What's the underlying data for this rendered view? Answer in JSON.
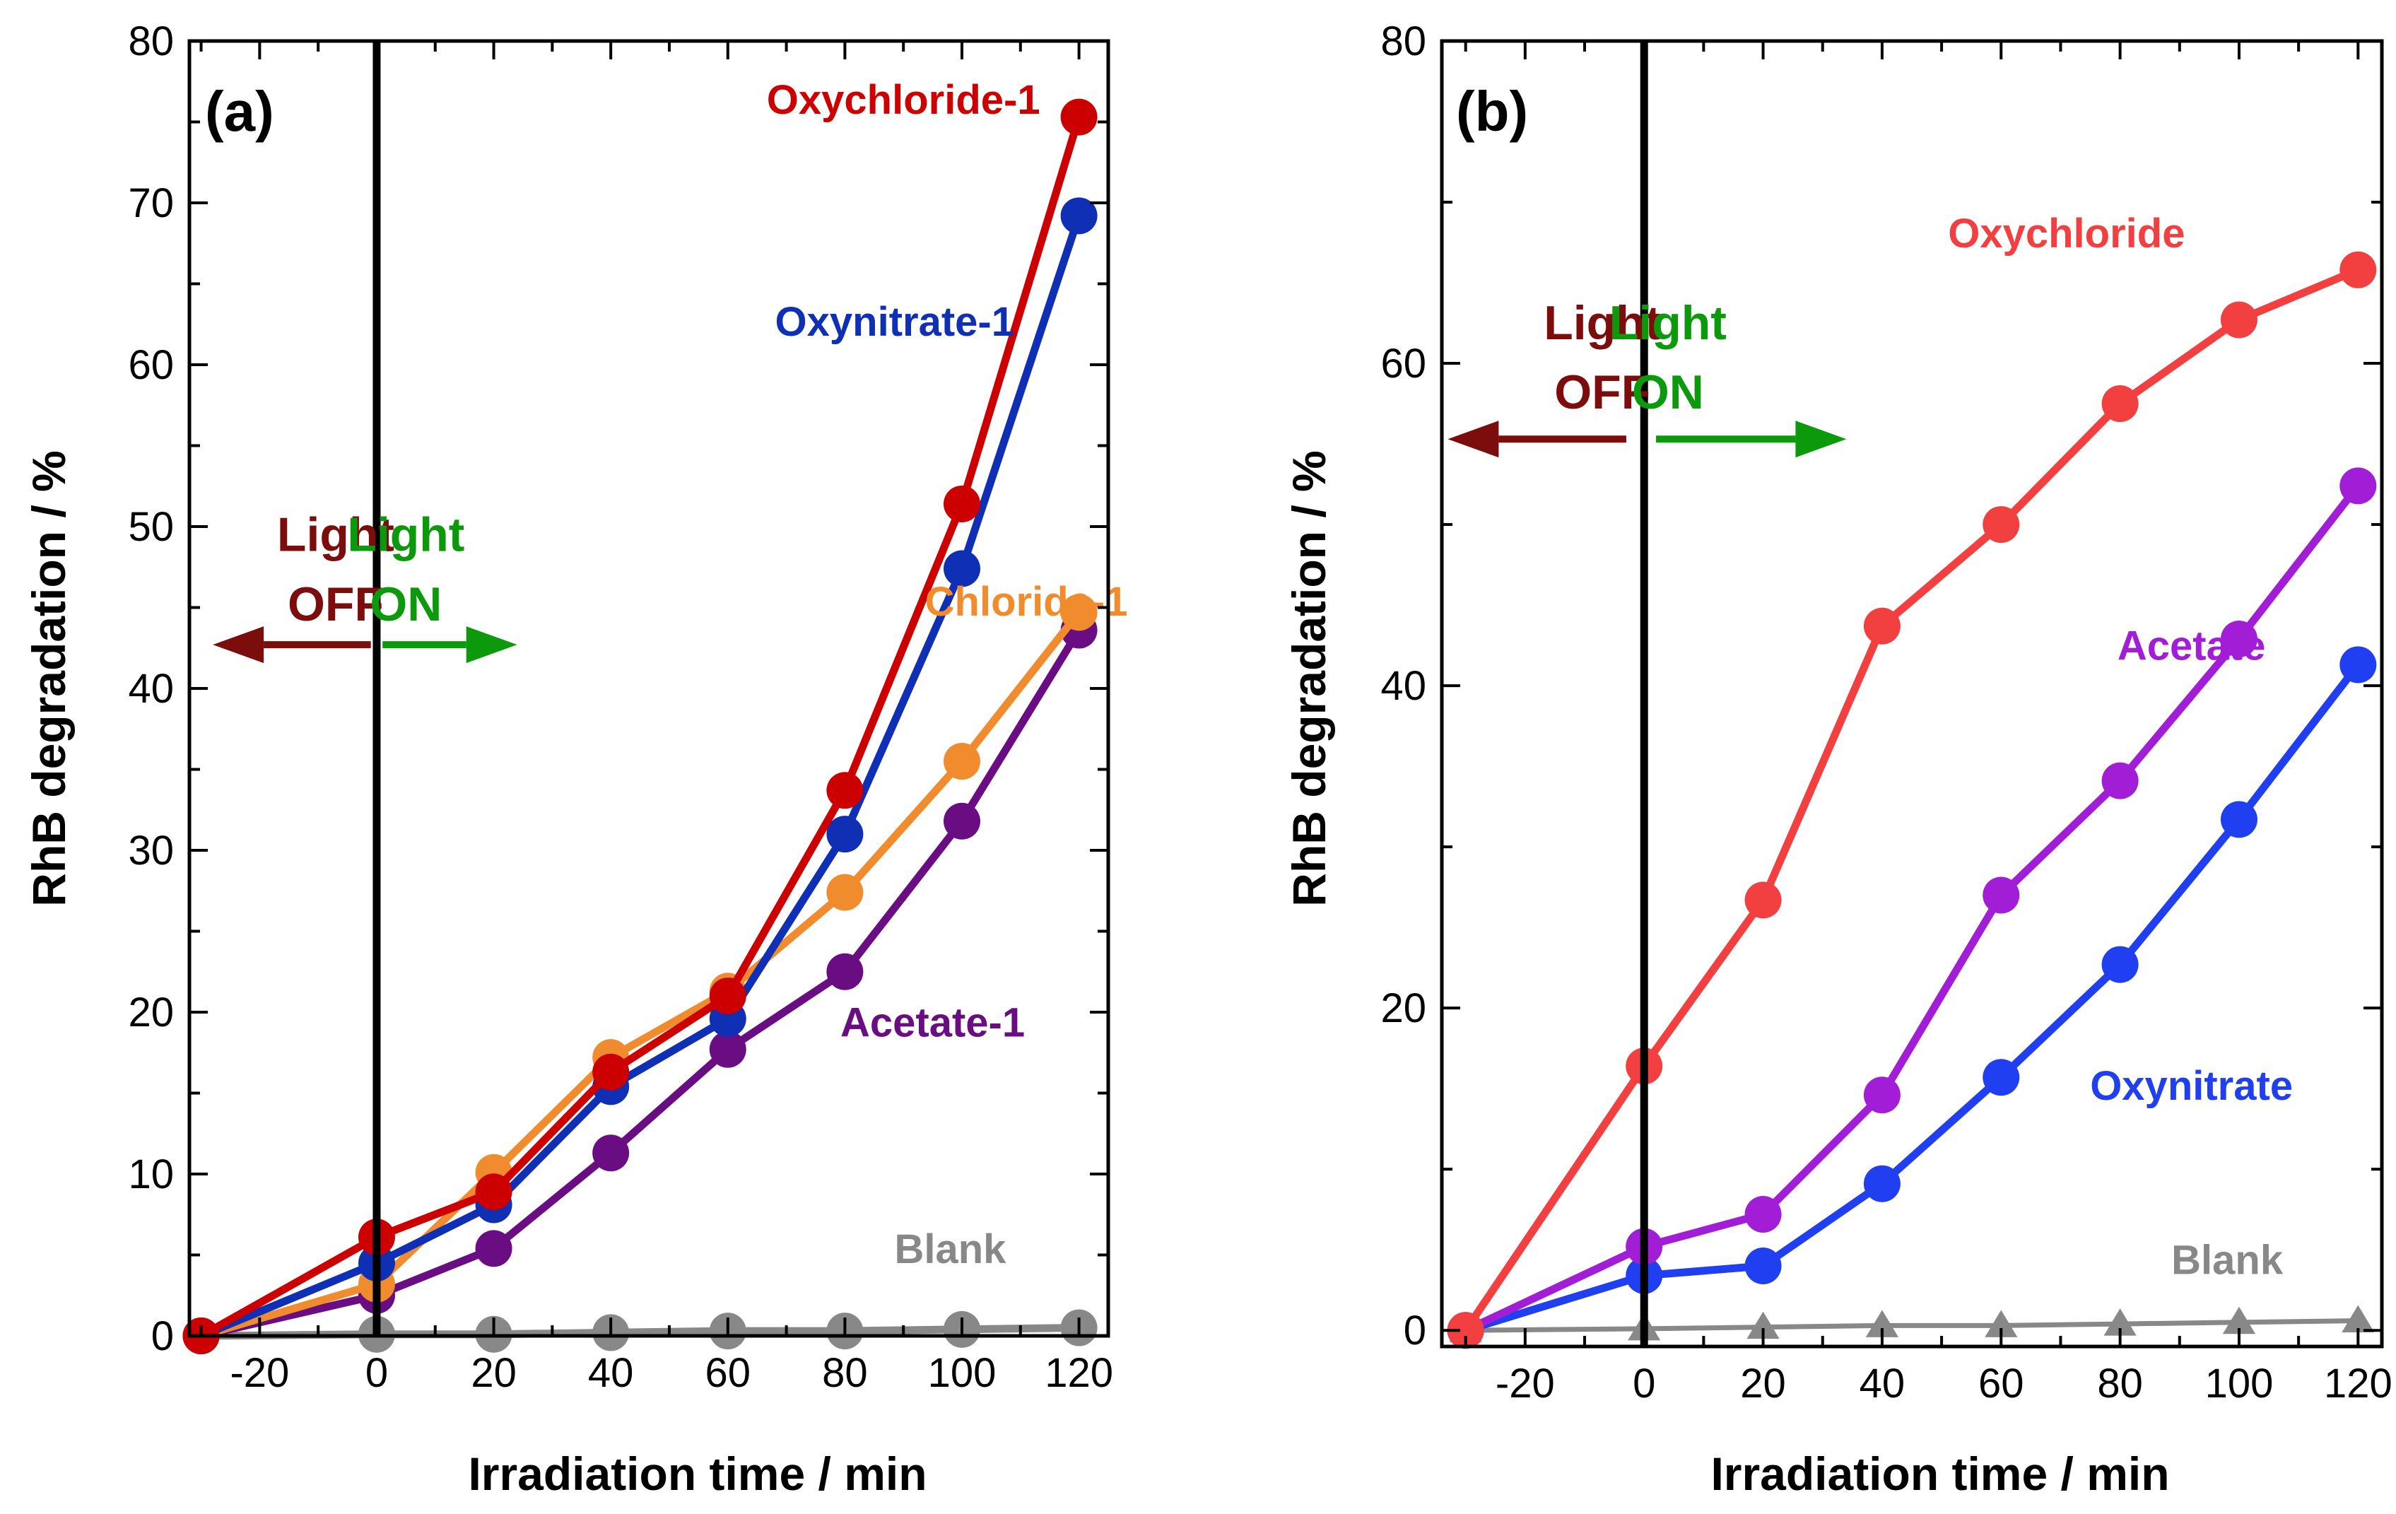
{
  "figure": {
    "background": "#ffffff",
    "axis_color": "#000000"
  },
  "chart_data": [
    {
      "type": "line",
      "panel_label": "(a)",
      "title": "",
      "xlabel": "Irradiation time / min",
      "ylabel": "RhB degradation / %",
      "xlim": [
        -32,
        125
      ],
      "ylim": [
        0,
        80
      ],
      "x_ticks": [
        -20,
        0,
        20,
        40,
        60,
        80,
        100,
        120
      ],
      "y_ticks": [
        0,
        10,
        20,
        30,
        40,
        50,
        60,
        70,
        80
      ],
      "grid": false,
      "light_switch_x": 0,
      "series": [
        {
          "name": "Blank",
          "color": "#888888",
          "marker": "circle",
          "label_pos": [
            98,
            4.5
          ],
          "x": [
            -30,
            0,
            20,
            40,
            60,
            80,
            100,
            120
          ],
          "y": [
            0,
            0.1,
            0.1,
            0.2,
            0.3,
            0.3,
            0.4,
            0.5
          ]
        },
        {
          "name": "Acetate-1",
          "color": "#6a0d83",
          "marker": "circle",
          "label_pos": [
            95,
            18.5
          ],
          "x": [
            -30,
            0,
            20,
            40,
            60,
            80,
            100,
            120
          ],
          "y": [
            0,
            2.5,
            5.4,
            11.3,
            17.7,
            22.5,
            31.8,
            43.6
          ]
        },
        {
          "name": "Chloride-1",
          "color": "#f08c2e",
          "marker": "circle",
          "label_pos": [
            111,
            44.5
          ],
          "x": [
            -30,
            0,
            20,
            40,
            60,
            80,
            100,
            120
          ],
          "y": [
            0,
            3.2,
            10.1,
            17.2,
            21.3,
            27.4,
            35.5,
            44.7
          ]
        },
        {
          "name": "Oxynitrate-1",
          "color": "#0f2fb5",
          "marker": "circle",
          "label_pos": [
            88.5,
            61.8
          ],
          "x": [
            -30,
            0,
            20,
            40,
            60,
            80,
            100,
            120
          ],
          "y": [
            0,
            4.5,
            8.1,
            15.4,
            19.6,
            31.0,
            47.4,
            69.2
          ]
        },
        {
          "name": "Oxychloride-1",
          "color": "#cc0000",
          "marker": "circle",
          "label_pos": [
            90,
            75.5
          ],
          "x": [
            -30,
            0,
            20,
            40,
            60,
            80,
            100,
            120
          ],
          "y": [
            0,
            6.1,
            8.9,
            16.3,
            21.0,
            33.7,
            51.4,
            75.3
          ]
        }
      ],
      "annotations": {
        "light_off": {
          "line1": "Light",
          "line2": "OFF",
          "color": "#7b0d0d",
          "text_x": -7,
          "y1": 48.5,
          "y2": 44.2,
          "arrow_y": 42.7,
          "arrow_from": -1,
          "arrow_to": -28
        },
        "light_on": {
          "line1": "Light",
          "line2": "ON",
          "color": "#0c9a0c",
          "text_x": 5,
          "y1": 48.5,
          "y2": 44.2,
          "arrow_y": 42.7,
          "arrow_from": 1,
          "arrow_to": 24
        }
      }
    },
    {
      "type": "line",
      "panel_label": "(b)",
      "title": "",
      "xlabel": "Irradiation time / min",
      "ylabel": "RhB degradation / %",
      "xlim": [
        -34,
        124
      ],
      "ylim": [
        -1,
        80
      ],
      "x_ticks": [
        -20,
        0,
        20,
        40,
        60,
        80,
        100,
        120
      ],
      "y_ticks": [
        0,
        20,
        40,
        60,
        80
      ],
      "grid": false,
      "light_switch_x": 0,
      "series": [
        {
          "name": "Blank",
          "color": "#888888",
          "marker": "triangle",
          "label_pos": [
            98,
            3.5
          ],
          "x": [
            -30,
            0,
            20,
            40,
            60,
            80,
            100,
            120
          ],
          "y": [
            0,
            0.1,
            0.2,
            0.3,
            0.3,
            0.4,
            0.5,
            0.6
          ]
        },
        {
          "name": "Oxynitrate",
          "color": "#1f3ff0",
          "marker": "circle",
          "label_pos": [
            92,
            14.3
          ],
          "x": [
            -30,
            0,
            20,
            40,
            60,
            80,
            100,
            120
          ],
          "y": [
            0,
            3.4,
            4.0,
            9.1,
            15.7,
            22.7,
            31.7,
            41.3
          ]
        },
        {
          "name": "Acetate",
          "color": "#a21ed6",
          "marker": "circle",
          "label_pos": [
            92,
            41.6
          ],
          "x": [
            -30,
            0,
            20,
            40,
            60,
            80,
            100,
            120
          ],
          "y": [
            0,
            5.2,
            7.2,
            14.6,
            27.0,
            34.1,
            42.9,
            52.4
          ]
        },
        {
          "name": "Oxychloride",
          "color": "#f23f3f",
          "marker": "circle",
          "label_pos": [
            71,
            67.2
          ],
          "x": [
            -30,
            0,
            20,
            40,
            60,
            80,
            100,
            120
          ],
          "y": [
            0,
            16.4,
            26.7,
            43.7,
            50.0,
            57.5,
            62.7,
            65.8
          ]
        }
      ],
      "annotations": {
        "light_off": {
          "line1": "Light",
          "line2": "OFF",
          "color": "#7b0d0d",
          "text_x": -7,
          "y1": 61.5,
          "y2": 57.2,
          "arrow_y": 55.3,
          "arrow_from": -3,
          "arrow_to": -33
        },
        "light_on": {
          "line1": "Light",
          "line2": "ON",
          "color": "#0c9a0c",
          "text_x": 4,
          "y1": 61.5,
          "y2": 57.2,
          "arrow_y": 55.3,
          "arrow_from": 2,
          "arrow_to": 34
        }
      }
    }
  ]
}
